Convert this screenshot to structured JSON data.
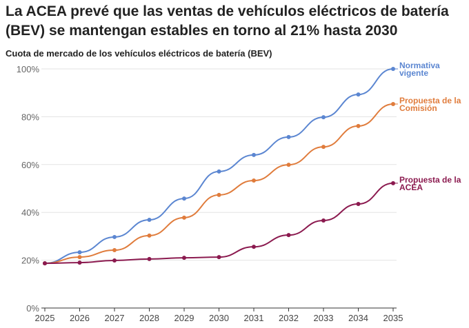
{
  "title": "La ACEA prevé que las ventas de vehículos eléctricos de batería (BEV) se mantengan estables en torno al 21% hasta 2030",
  "chart_data": {
    "type": "line",
    "subtitle": "Cuota de mercado de los vehículos eléctricos de batería (BEV)",
    "x": [
      2025,
      2026,
      2027,
      2028,
      2029,
      2030,
      2031,
      2032,
      2033,
      2034,
      2035
    ],
    "ylim": [
      0,
      100
    ],
    "yticks": [
      "0%",
      "20%",
      "40%",
      "60%",
      "80%",
      "100%"
    ],
    "ytick_values": [
      0,
      20,
      40,
      60,
      80,
      100
    ],
    "grid": true,
    "series": [
      {
        "name": "Normativa vigente",
        "color": "#5b86d1",
        "values": [
          18.7,
          23.3,
          29.7,
          36.9,
          45.8,
          57.1,
          64,
          71.5,
          79.8,
          89.3,
          100
        ]
      },
      {
        "name": "Propuesta de la Comisión",
        "color": "#e07c3c",
        "values": [
          18.7,
          21.3,
          24.2,
          30.3,
          37.8,
          47.3,
          53.3,
          59.9,
          67.4,
          76.1,
          85.3
        ]
      },
      {
        "name": "Propuesta de la ACEA",
        "color": "#8b1a4f",
        "values": [
          18.7,
          19,
          19.9,
          20.5,
          21,
          21.3,
          25.6,
          30.5,
          36.6,
          43.5,
          52.2
        ]
      }
    ],
    "label_lines": [
      [
        "Normativa",
        "vigente"
      ],
      [
        "Propuesta de la",
        "Comisión"
      ],
      [
        "Propuesta de la",
        "ACEA"
      ]
    ]
  }
}
